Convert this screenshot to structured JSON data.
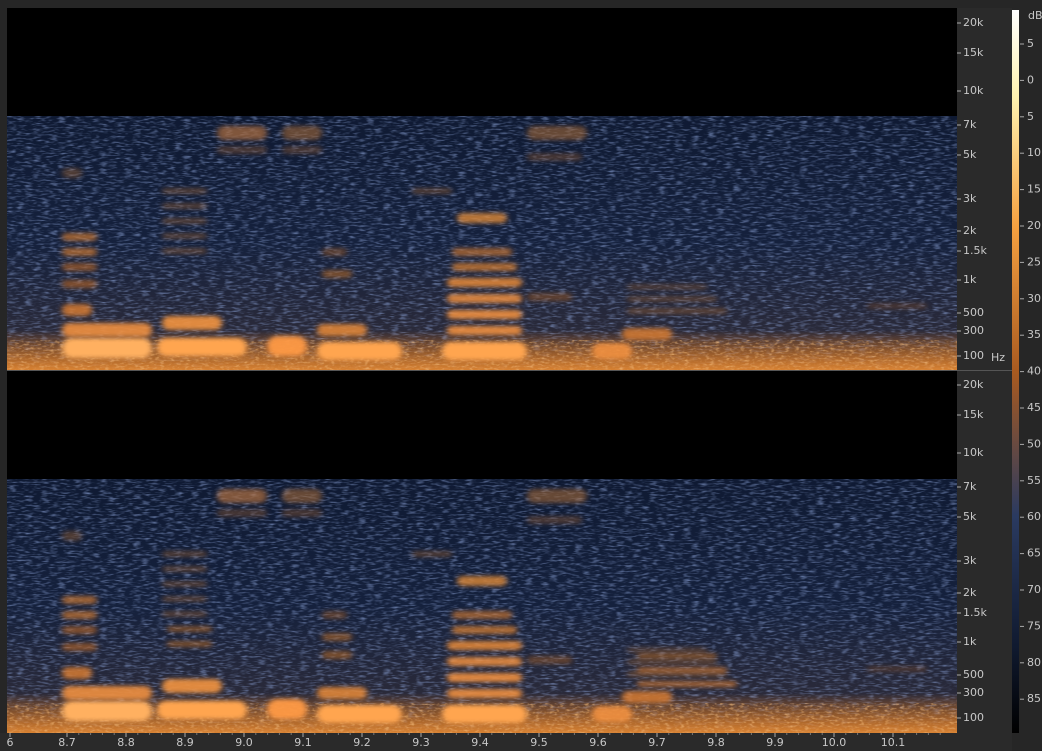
{
  "frequency_axis": {
    "top": [
      "20k",
      "15k",
      "10k",
      "7k",
      "5k",
      "3k",
      "2k",
      "1.5k",
      "1k",
      "500",
      "300",
      "100"
    ],
    "bottom": [
      "20k",
      "15k",
      "10k",
      "7k",
      "5k",
      "3k",
      "2k",
      "1.5k",
      "1k",
      "500",
      "300",
      "100"
    ],
    "unit": "Hz"
  },
  "db_scale": {
    "unit": "dB",
    "labels": [
      "5",
      "0",
      "5",
      "10",
      "15",
      "20",
      "25",
      "30",
      "35",
      "40",
      "45",
      "50",
      "55",
      "60",
      "65",
      "70",
      "75",
      "80",
      "85"
    ]
  },
  "time_axis": {
    "labels": [
      "6",
      "8.7",
      "8.8",
      "8.9",
      "9.0",
      "9.1",
      "9.2",
      "9.3",
      "9.4",
      "9.5",
      "9.6",
      "9.7",
      "9.8",
      "9.9",
      "10.0",
      "10.1"
    ]
  }
}
